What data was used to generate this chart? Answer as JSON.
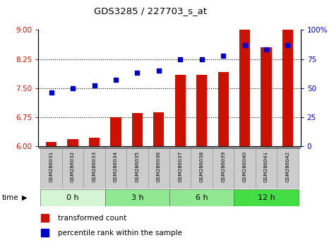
{
  "title": "GDS3285 / 227703_s_at",
  "samples": [
    "GSM286031",
    "GSM286032",
    "GSM286033",
    "GSM286034",
    "GSM286035",
    "GSM286036",
    "GSM286037",
    "GSM286038",
    "GSM286039",
    "GSM286040",
    "GSM286041",
    "GSM286042"
  ],
  "bar_values": [
    6.12,
    6.18,
    6.22,
    6.75,
    6.85,
    6.88,
    7.85,
    7.85,
    7.92,
    9.0,
    8.55,
    9.0
  ],
  "scatter_values": [
    46,
    50,
    52,
    57,
    63,
    65,
    75,
    75,
    78,
    87,
    83,
    87
  ],
  "groups": [
    {
      "label": "0 h",
      "start": 0,
      "end": 3
    },
    {
      "label": "3 h",
      "start": 3,
      "end": 6
    },
    {
      "label": "6 h",
      "start": 6,
      "end": 9
    },
    {
      "label": "12 h",
      "start": 9,
      "end": 12
    }
  ],
  "group_colors": [
    "#d4f5d4",
    "#90e890",
    "#90e890",
    "#44dd44"
  ],
  "ylim_left": [
    6.0,
    9.0
  ],
  "ylim_right": [
    0,
    100
  ],
  "yticks_left": [
    6.0,
    6.75,
    7.5,
    8.25,
    9.0
  ],
  "yticks_right": [
    0,
    25,
    50,
    75,
    100
  ],
  "bar_color": "#cc1100",
  "scatter_color": "#0000cc",
  "bar_bottom": 6.0,
  "sample_box_color": "#cccccc",
  "legend_red_label": "transformed count",
  "legend_blue_label": "percentile rank within the sample"
}
